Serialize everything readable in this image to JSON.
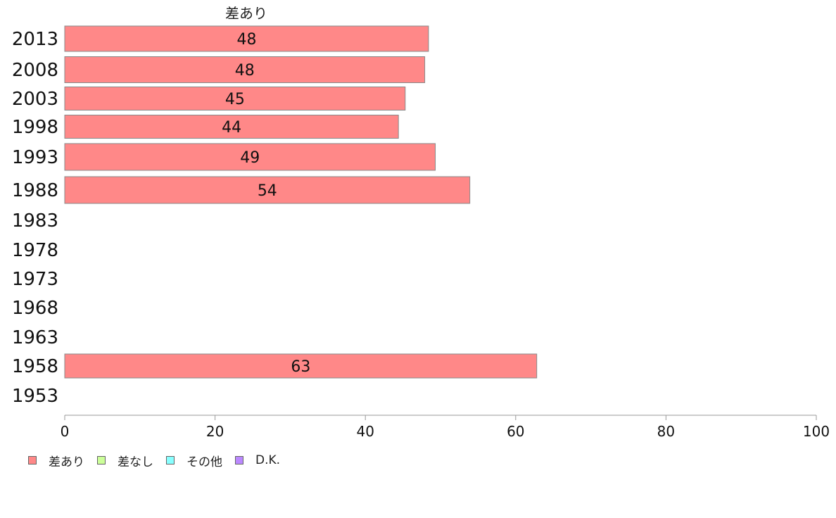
{
  "chart_data": {
    "type": "bar",
    "orientation": "horizontal",
    "stacked": true,
    "categories": [
      "2013",
      "2008",
      "2003",
      "1998",
      "1993",
      "1988",
      "1983",
      "1978",
      "1973",
      "1968",
      "1963",
      "1958",
      "1953"
    ],
    "series": [
      {
        "name": "差あり",
        "color": "#ff8888",
        "values": [
          48,
          48,
          45,
          44,
          49,
          54,
          null,
          null,
          null,
          null,
          null,
          63,
          null
        ]
      },
      {
        "name": "差なし",
        "color": "#ccff99",
        "values": [
          null,
          null,
          null,
          null,
          null,
          null,
          null,
          null,
          null,
          null,
          null,
          null,
          null
        ]
      },
      {
        "name": "その他",
        "color": "#88ffff",
        "values": [
          null,
          null,
          null,
          null,
          null,
          null,
          null,
          null,
          null,
          null,
          null,
          null,
          null
        ]
      },
      {
        "name": "D.K.",
        "color": "#bb88ff",
        "values": [
          null,
          null,
          null,
          null,
          null,
          null,
          null,
          null,
          null,
          null,
          null,
          null,
          null
        ]
      }
    ],
    "bar_values": [
      48.4,
      47.9,
      45.3,
      44.4,
      49.3,
      53.9,
      null,
      null,
      null,
      null,
      null,
      62.8,
      null
    ],
    "data_labels": [
      "48",
      "48",
      "45",
      "44",
      "49",
      "54",
      "",
      "",
      "",
      "",
      "",
      "63",
      ""
    ],
    "series_header": "差あり",
    "xlim": [
      0,
      100
    ],
    "xticks": [
      0,
      20,
      40,
      60,
      80,
      100
    ],
    "grid": false,
    "legend_position": "bottom-left"
  },
  "legend": {
    "items": [
      {
        "label": "差あり",
        "color": "#ff8888"
      },
      {
        "label": "差なし",
        "color": "#ccff99"
      },
      {
        "label": "その他",
        "color": "#88ffff"
      },
      {
        "label": "D.K.",
        "color": "#bb88ff"
      }
    ]
  }
}
